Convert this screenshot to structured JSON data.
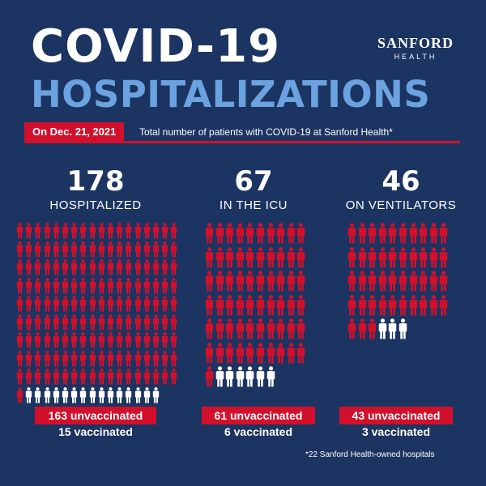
{
  "title": {
    "line1": "COVID-19",
    "line2": "HOSPITALIZATIONS"
  },
  "logo": {
    "brand": "SANFORD",
    "sub": "HEALTH"
  },
  "date_badge": "On Dec. 21, 2021",
  "date_caption": "Total number of patients with COVID-19 at Sanford Health*",
  "colors": {
    "background": "#1c3461",
    "accent_red": "#d2102c",
    "light_blue": "#6aa3e0",
    "white": "#ffffff"
  },
  "icon": "person-icon",
  "sections": [
    {
      "key": "hospitalized",
      "number": "178",
      "label": "HOSPITALIZED",
      "total": 178,
      "unvaccinated": 163,
      "vaccinated": 15,
      "unvaccinated_text": "163 unvaccinated",
      "vaccinated_text": "15 vaccinated"
    },
    {
      "key": "icu",
      "number": "67",
      "label": "IN THE ICU",
      "total": 67,
      "unvaccinated": 61,
      "vaccinated": 6,
      "unvaccinated_text": "61 unvaccinated",
      "vaccinated_text": "6 vaccinated"
    },
    {
      "key": "ventilators",
      "number": "46",
      "label": "ON VENTILATORS",
      "total": 46,
      "unvaccinated": 43,
      "vaccinated": 3,
      "unvaccinated_text": "43 unvaccinated",
      "vaccinated_text": "3 vaccinated"
    }
  ],
  "footnote": "*22 Sanford Health-owned hospitals"
}
